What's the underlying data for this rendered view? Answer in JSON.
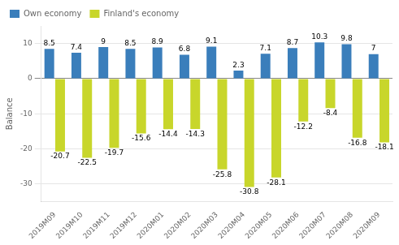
{
  "chart_data": {
    "type": "bar",
    "categories": [
      "2019M09",
      "2019M10",
      "2019M11",
      "2019M12",
      "2020M01",
      "2020M02",
      "2020M03",
      "2020M04",
      "2020M05",
      "2020M06",
      "2020M07",
      "2020M08",
      "2020M09"
    ],
    "series": [
      {
        "name": "Own economy",
        "color": "#3A7EBB",
        "values": [
          8.5,
          7.4,
          9.0,
          8.5,
          8.9,
          6.8,
          9.1,
          2.3,
          7.1,
          8.7,
          10.3,
          9.8,
          7.0
        ]
      },
      {
        "name": "Finland's economy",
        "color": "#C8D62B",
        "values": [
          -20.7,
          -22.5,
          -19.7,
          -15.6,
          -14.4,
          -14.3,
          -25.8,
          -30.8,
          -28.1,
          -12.2,
          -8.4,
          -16.8,
          -18.1
        ]
      }
    ],
    "ylabel": "Balance",
    "ylim": [
      -35,
      15
    ],
    "yticks": [
      -30,
      -20,
      -10,
      0,
      10
    ],
    "grid": true,
    "legend": "upper left",
    "data_labels": true
  }
}
